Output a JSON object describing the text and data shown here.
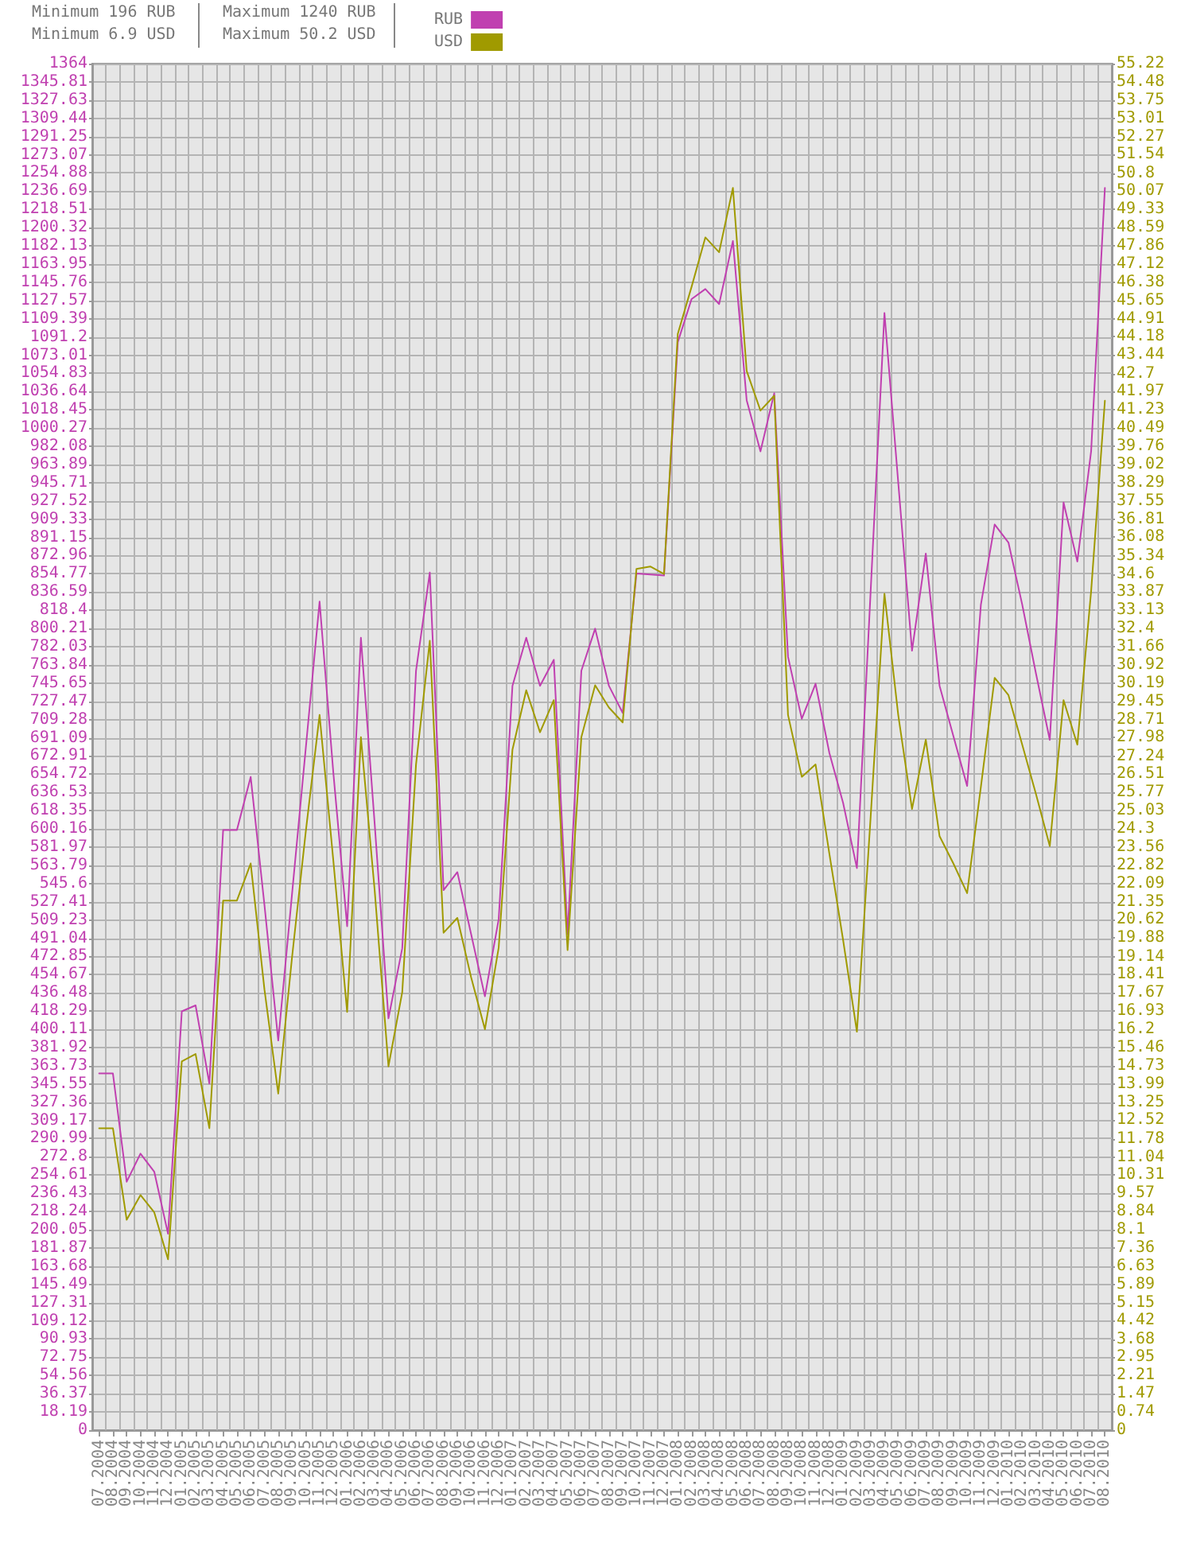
{
  "chart_data": {
    "type": "line",
    "annotations": [
      "Minimum 196 RUB",
      "Minimum 6.9 USD",
      "Maximum 1240 RUB",
      "Maximum 50.2 USD"
    ],
    "categories": [
      "07.2004",
      "08.2004",
      "09.2004",
      "10.2004",
      "11.2004",
      "12.2004",
      "01.2005",
      "02.2005",
      "03.2005",
      "04.2005",
      "05.2005",
      "06.2005",
      "07.2005",
      "08.2005",
      "09.2005",
      "10.2005",
      "11.2005",
      "12.2005",
      "01.2006",
      "02.2006",
      "03.2006",
      "04.2006",
      "05.2006",
      "06.2006",
      "07.2006",
      "08.2006",
      "09.2006",
      "10.2006",
      "11.2006",
      "12.2006",
      "01.2007",
      "02.2007",
      "03.2007",
      "04.2007",
      "05.2007",
      "06.2007",
      "07.2007",
      "08.2007",
      "09.2007",
      "10.2007",
      "11.2007",
      "12.2007",
      "01.2008",
      "02.2008",
      "03.2008",
      "04.2008",
      "05.2008",
      "06.2008",
      "07.2008",
      "08.2008",
      "09.2008",
      "10.2008",
      "11.2008",
      "12.2008",
      "01.2009",
      "02.2009",
      "03.2009",
      "04.2009",
      "05.2009",
      "06.2009",
      "07.2009",
      "08.2009",
      "09.2009",
      "10.2009",
      "11.2009",
      "12.2009",
      "01.2010",
      "02.2010",
      "03.2010",
      "04.2010",
      "05.2010",
      "06.2010",
      "07.2010",
      "08.2010"
    ],
    "series": [
      {
        "name": "RUB",
        "color": "#c040b0",
        "values": [
          356,
          356,
          248,
          276,
          258,
          196,
          418,
          424,
          346,
          599,
          599,
          652,
          524,
          389,
          535,
          681,
          827,
          656,
          503,
          791,
          605,
          411,
          481,
          758,
          856,
          539,
          557,
          495,
          433,
          510,
          743,
          791,
          743,
          769,
          495,
          758,
          800,
          743,
          716,
          855,
          854,
          853,
          1086,
          1129,
          1139,
          1124,
          1187,
          1028,
          977,
          1035,
          772,
          710,
          745,
          676,
          626,
          561,
          838,
          1115,
          946,
          778,
          875,
          743,
          693,
          643,
          824,
          904,
          886,
          824,
          755,
          689,
          926,
          867,
          977,
          1240
        ]
      },
      {
        "name": "USD",
        "color": "#a09a00",
        "axis": "y2",
        "values": [
          12.2,
          12.2,
          8.5,
          9.5,
          8.8,
          6.9,
          14.9,
          15.2,
          12.2,
          21.4,
          21.4,
          22.9,
          17.8,
          13.6,
          19.1,
          24.2,
          28.9,
          23.0,
          16.9,
          28.0,
          21.8,
          14.7,
          17.7,
          26.9,
          31.9,
          20.1,
          20.7,
          18.3,
          16.2,
          19.5,
          27.5,
          29.9,
          28.2,
          29.5,
          19.4,
          28.0,
          30.1,
          29.2,
          28.6,
          34.8,
          34.9,
          34.6,
          44.3,
          46.2,
          48.2,
          47.6,
          50.2,
          42.8,
          41.2,
          41.8,
          28.9,
          26.4,
          26.9,
          23.3,
          19.8,
          16.1,
          24.8,
          33.8,
          28.9,
          25.1,
          27.9,
          24.0,
          22.9,
          21.7,
          26.0,
          30.4,
          29.7,
          27.7,
          25.7,
          23.6,
          29.5,
          27.7,
          33.9,
          41.6
        ]
      }
    ],
    "ylim": [
      0,
      1364
    ],
    "yticks": [
      0,
      18.19,
      36.37,
      54.56,
      72.75,
      90.93,
      109.12,
      127.31,
      145.49,
      163.68,
      181.87,
      200.05,
      218.24,
      236.43,
      254.61,
      272.8,
      290.99,
      309.17,
      327.36,
      345.55,
      363.73,
      381.92,
      400.11,
      418.29,
      436.48,
      454.67,
      472.85,
      491.04,
      509.23,
      527.41,
      545.6,
      563.79,
      581.97,
      600.16,
      618.35,
      636.53,
      654.72,
      672.91,
      691.09,
      709.28,
      727.47,
      745.65,
      763.84,
      782.03,
      800.21,
      818.4,
      836.59,
      854.77,
      872.96,
      891.15,
      909.33,
      927.52,
      945.71,
      963.89,
      982.08,
      1000.27,
      1018.45,
      1036.64,
      1054.83,
      1073.01,
      1091.2,
      1109.39,
      1127.57,
      1145.76,
      1163.95,
      1182.13,
      1200.32,
      1218.51,
      1236.69,
      1254.88,
      1273.07,
      1291.25,
      1309.44,
      1327.63,
      1345.81,
      1364
    ],
    "y2lim": [
      0,
      55.22
    ],
    "y2ticks": [
      0,
      0.74,
      1.47,
      2.21,
      2.95,
      3.68,
      4.42,
      5.15,
      5.89,
      6.63,
      7.36,
      8.1,
      8.84,
      9.57,
      10.31,
      11.04,
      11.78,
      12.52,
      13.25,
      13.99,
      14.73,
      15.46,
      16.2,
      16.93,
      17.67,
      18.41,
      19.14,
      19.88,
      20.62,
      21.35,
      22.09,
      22.82,
      23.56,
      24.3,
      25.03,
      25.77,
      26.51,
      27.24,
      27.98,
      28.71,
      29.45,
      30.19,
      30.92,
      31.66,
      32.4,
      33.13,
      33.87,
      34.6,
      35.34,
      36.08,
      36.81,
      37.55,
      38.29,
      39.02,
      39.76,
      40.49,
      41.23,
      41.97,
      42.7,
      43.44,
      44.18,
      44.91,
      45.65,
      46.38,
      47.12,
      47.86,
      48.59,
      49.33,
      50.07,
      50.8,
      51.54,
      52.27,
      53.01,
      53.75,
      54.48,
      55.22
    ],
    "legend": "top",
    "grid": true,
    "marker": "none",
    "line_style": "solid"
  }
}
